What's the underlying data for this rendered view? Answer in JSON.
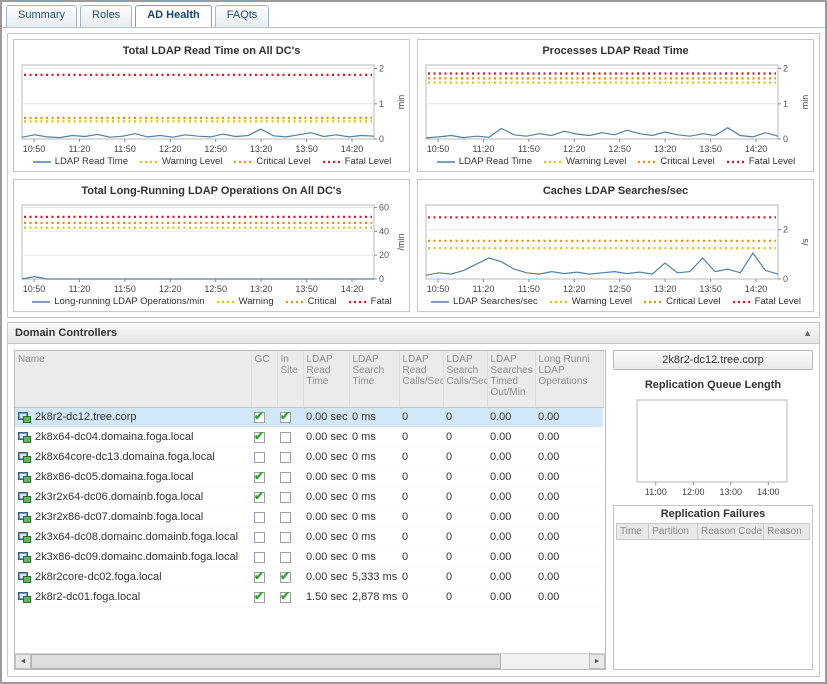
{
  "tabs": {
    "items": [
      {
        "label": "Summary",
        "active": false
      },
      {
        "label": "Roles",
        "active": false
      },
      {
        "label": "AD Health",
        "active": true
      },
      {
        "label": "FAQts",
        "active": false
      }
    ]
  },
  "chart_data": "see charts",
  "charts": [
    {
      "type": "line",
      "title": "Total LDAP Read Time on All DC's",
      "x_labels": [
        "10:50",
        "11:20",
        "11:50",
        "12:20",
        "12:50",
        "13:20",
        "13:50",
        "14:20"
      ],
      "x_edge": true,
      "y_ticks": [
        0,
        1,
        2
      ],
      "y_max": 2.1,
      "y_label": "min",
      "thresholds": [
        {
          "name": "Warning Level",
          "value": 0.5,
          "color": "#e3c300"
        },
        {
          "name": "Critical Level",
          "value": 0.6,
          "color": "#f28c00"
        },
        {
          "name": "Fatal Level",
          "value": 1.82,
          "color": "#e81123"
        }
      ],
      "series": {
        "name": "LDAP Read Time",
        "color": "#4f81a8",
        "values": [
          0.05,
          0.12,
          0.06,
          0.04,
          0.1,
          0.07,
          0.13,
          0.05,
          0.08,
          0.15,
          0.06,
          0.1,
          0.05,
          0.12,
          0.08,
          0.06,
          0.14,
          0.07,
          0.1,
          0.28,
          0.09,
          0.06,
          0.12,
          0.18,
          0.07,
          0.12,
          0.06,
          0.1,
          0.08
        ]
      }
    },
    {
      "type": "line",
      "title": "Processes LDAP Read Time",
      "x_labels": [
        "10:50",
        "11:20",
        "11:50",
        "12:20",
        "12:50",
        "13:20",
        "13:50",
        "14:20"
      ],
      "x_edge": true,
      "y_ticks": [
        0,
        1,
        2
      ],
      "y_max": 2.1,
      "y_label": "min",
      "thresholds": [
        {
          "name": "Warning Level",
          "value": 1.6,
          "color": "#e3c300"
        },
        {
          "name": "Critical Level",
          "value": 1.72,
          "color": "#f28c00"
        },
        {
          "name": "Fatal Level",
          "value": 1.86,
          "color": "#e81123"
        }
      ],
      "series": {
        "name": "LDAP Read Time",
        "color": "#4f81a8",
        "values": [
          0.03,
          0.06,
          0.1,
          0.04,
          0.08,
          0.05,
          0.3,
          0.12,
          0.08,
          0.15,
          0.1,
          0.22,
          0.14,
          0.1,
          0.18,
          0.12,
          0.25,
          0.15,
          0.1,
          0.2,
          0.12,
          0.08,
          0.15,
          0.1,
          0.32,
          0.1,
          0.06,
          0.18,
          0.08
        ]
      }
    },
    {
      "type": "line",
      "title": "Total Long-Running LDAP Operations On All DC's",
      "x_labels": [
        "10:50",
        "11:20",
        "11:50",
        "12:20",
        "12:50",
        "13:20",
        "13:50",
        "14:20"
      ],
      "x_edge": true,
      "y_ticks": [
        0,
        20,
        40,
        60
      ],
      "y_max": 62,
      "y_label": "/min",
      "thresholds": [
        {
          "name": "Warning",
          "value": 43,
          "color": "#e3c300"
        },
        {
          "name": "Critical",
          "value": 47,
          "color": "#f28c00"
        },
        {
          "name": "Fatal",
          "value": 52,
          "color": "#e81123"
        }
      ],
      "series": {
        "name": "Long-running LDAP Operations/min",
        "color": "#4f81a8",
        "values": [
          0,
          2,
          0,
          0,
          0,
          0,
          0,
          0,
          0,
          0,
          0,
          0,
          0,
          0,
          0,
          0,
          0,
          0,
          0,
          0,
          0,
          0,
          0,
          0,
          0,
          0,
          0,
          0,
          0
        ]
      }
    },
    {
      "type": "line",
      "title": "Caches LDAP Searches/sec",
      "x_labels": [
        "10:50",
        "11:20",
        "11:50",
        "12:20",
        "12:50",
        "13:20",
        "13:50",
        "14:20"
      ],
      "x_edge": true,
      "y_ticks": [
        0,
        2
      ],
      "y_max": 3,
      "y_label": "/s",
      "thresholds": [
        {
          "name": "Warning Level",
          "value": 1.25,
          "color": "#e3c300"
        },
        {
          "name": "Critical Level",
          "value": 1.55,
          "color": "#f28c00"
        },
        {
          "name": "Fatal Level",
          "value": 2.5,
          "color": "#e81123"
        }
      ],
      "series": {
        "name": "LDAP Searches/sec",
        "color": "#4f81a8",
        "values": [
          0.15,
          0.25,
          0.2,
          0.35,
          0.6,
          0.85,
          0.7,
          0.4,
          0.25,
          0.2,
          0.3,
          0.22,
          0.28,
          0.2,
          0.25,
          0.3,
          0.22,
          0.28,
          0.2,
          0.65,
          0.25,
          0.3,
          0.85,
          0.3,
          0.4,
          0.25,
          1.05,
          0.35,
          0.2
        ]
      }
    }
  ],
  "dc_section": {
    "title": "Domain Controllers",
    "collapse_icon": "▲"
  },
  "domain_controllers": {
    "columns": [
      "Name",
      "GC",
      "In Site",
      "LDAP Read Time",
      "LDAP Search Time",
      "LDAP Read Calls/Sec",
      "LDAP Search Calls/Sec",
      "LDAP Searches Timed Out/Min",
      "Long Runni LDAP Operations"
    ],
    "rows": [
      {
        "name": "2k8r2-dc12.tree.corp",
        "gc": true,
        "in_site": true,
        "read_time": "0.00 sec",
        "search_time": "0 ms",
        "read_calls": "0",
        "search_calls": "0",
        "timed_out": "0.00",
        "long_running": "0.00",
        "selected": true
      },
      {
        "name": "2k8x64-dc04.domaina.foga.local",
        "gc": true,
        "in_site": false,
        "read_time": "0.00 sec",
        "search_time": "0 ms",
        "read_calls": "0",
        "search_calls": "0",
        "timed_out": "0.00",
        "long_running": "0.00",
        "selected": false
      },
      {
        "name": "2k8x64core-dc13.domaina.foga.local",
        "gc": false,
        "in_site": false,
        "read_time": "0.00 sec",
        "search_time": "0 ms",
        "read_calls": "0",
        "search_calls": "0",
        "timed_out": "0.00",
        "long_running": "0.00",
        "selected": false
      },
      {
        "name": "2k8x86-dc05.domaina.foga.local",
        "gc": true,
        "in_site": false,
        "read_time": "0.00 sec",
        "search_time": "0 ms",
        "read_calls": "0",
        "search_calls": "0",
        "timed_out": "0.00",
        "long_running": "0.00",
        "selected": false
      },
      {
        "name": "2k3r2x64-dc06.domainb.foga.local",
        "gc": true,
        "in_site": false,
        "read_time": "0.00 sec",
        "search_time": "0 ms",
        "read_calls": "0",
        "search_calls": "0",
        "timed_out": "0.00",
        "long_running": "0.00",
        "selected": false
      },
      {
        "name": "2k3r2x86-dc07.domainb.foga.local",
        "gc": false,
        "in_site": false,
        "read_time": "0.00 sec",
        "search_time": "0 ms",
        "read_calls": "0",
        "search_calls": "0",
        "timed_out": "0.00",
        "long_running": "0.00",
        "selected": false
      },
      {
        "name": "2k3x64-dc08.domainc.domainb.foga.local",
        "gc": false,
        "in_site": false,
        "read_time": "0.00 sec",
        "search_time": "0 ms",
        "read_calls": "0",
        "search_calls": "0",
        "timed_out": "0.00",
        "long_running": "0.00",
        "selected": false
      },
      {
        "name": "2k3x86-dc09.domainc.domainb.foga.local",
        "gc": false,
        "in_site": false,
        "read_time": "0.00 sec",
        "search_time": "0 ms",
        "read_calls": "0",
        "search_calls": "0",
        "timed_out": "0.00",
        "long_running": "0.00",
        "selected": false
      },
      {
        "name": "2k8r2core-dc02.foga.local",
        "gc": true,
        "in_site": true,
        "read_time": "0.00 sec",
        "search_time": "5,333 ms",
        "read_calls": "0",
        "search_calls": "0",
        "timed_out": "0.00",
        "long_running": "0.00",
        "selected": false
      },
      {
        "name": "2k8r2-dc01.foga.local",
        "gc": true,
        "in_site": true,
        "read_time": "1.50 sec",
        "search_time": "2,878 ms",
        "read_calls": "0",
        "search_calls": "0",
        "timed_out": "0.00",
        "long_running": "0.00",
        "selected": false
      }
    ]
  },
  "detail": {
    "title": "2k8r2-dc12.tree.corp",
    "queue_chart": {
      "type": "line",
      "title": "Replication Queue Length",
      "x_labels": [
        "11:00",
        "12:00",
        "13:00",
        "14:00"
      ],
      "x_edge": false,
      "y_ticks": [],
      "y_max": 1,
      "y_label": "",
      "thresholds": [],
      "series": null
    },
    "failures": {
      "title": "Replication Failures",
      "columns": [
        "Time",
        "Partition",
        "Reason Code",
        "Reason"
      ]
    }
  },
  "scrollbar": {
    "left": "◄",
    "right": "►"
  }
}
